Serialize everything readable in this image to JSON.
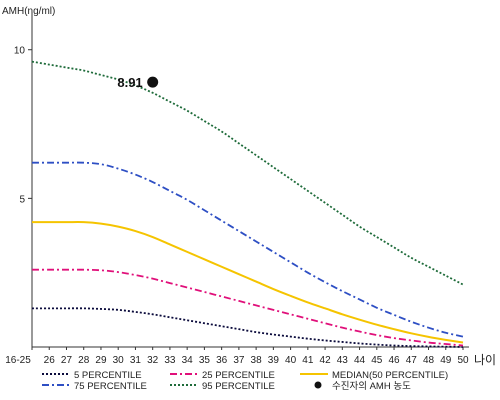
{
  "chart_data": {
    "type": "line",
    "ylabel": "AMH(ng/ml)",
    "xlabel": "나이",
    "ylim": [
      0,
      11
    ],
    "yticks": [
      5,
      10
    ],
    "ytick_labels": [
      "5",
      "10"
    ],
    "x": [
      0,
      1,
      2,
      3,
      4,
      5,
      6,
      7,
      8,
      9,
      10,
      11,
      12,
      13,
      14,
      15,
      16,
      17,
      18,
      19,
      20,
      21,
      22,
      23,
      24,
      25
    ],
    "xtick_labels": [
      "16-25",
      "26",
      "27",
      "28",
      "29",
      "30",
      "31",
      "32",
      "33",
      "34",
      "35",
      "36",
      "37",
      "38",
      "39",
      "40",
      "41",
      "42",
      "43",
      "44",
      "45",
      "46",
      "47",
      "48",
      "49",
      "50"
    ],
    "series": [
      {
        "name": "5 PERCENTILE",
        "color": "#0b0b3c",
        "dash": "2,2",
        "values": [
          1.3,
          1.3,
          1.3,
          1.3,
          1.28,
          1.25,
          1.18,
          1.1,
          1.0,
          0.9,
          0.8,
          0.7,
          0.6,
          0.5,
          0.42,
          0.35,
          0.28,
          0.22,
          0.17,
          0.12,
          0.08,
          0.05,
          0.03,
          0.02,
          0.01,
          0.0
        ]
      },
      {
        "name": "75 PERCENTILE",
        "color": "#2e4fc4",
        "dash": "7,3,2,3",
        "values": [
          6.2,
          6.2,
          6.2,
          6.2,
          6.15,
          6.0,
          5.8,
          5.55,
          5.25,
          4.95,
          4.6,
          4.25,
          3.9,
          3.55,
          3.2,
          2.85,
          2.5,
          2.18,
          1.88,
          1.6,
          1.32,
          1.08,
          0.85,
          0.65,
          0.48,
          0.35
        ]
      },
      {
        "name": "25 PERCENTILE",
        "color": "#e0107a",
        "dash": "7,3,2,3",
        "values": [
          2.6,
          2.6,
          2.6,
          2.6,
          2.58,
          2.52,
          2.42,
          2.3,
          2.15,
          2.0,
          1.85,
          1.7,
          1.55,
          1.4,
          1.25,
          1.1,
          0.95,
          0.8,
          0.65,
          0.52,
          0.4,
          0.3,
          0.22,
          0.15,
          0.1,
          0.05
        ]
      },
      {
        "name": "95 PERCENTILE",
        "color": "#1e6b3a",
        "dash": "2,2",
        "values": [
          9.6,
          9.5,
          9.4,
          9.3,
          9.15,
          9.0,
          8.8,
          8.55,
          8.25,
          7.95,
          7.6,
          7.25,
          6.85,
          6.45,
          6.05,
          5.65,
          5.25,
          4.85,
          4.45,
          4.05,
          3.7,
          3.35,
          3.0,
          2.7,
          2.4,
          2.1
        ]
      },
      {
        "name": "MEDIAN(50 PERCENTILE)",
        "color": "#f5c400",
        "dash": "",
        "values": [
          4.2,
          4.2,
          4.2,
          4.2,
          4.15,
          4.05,
          3.9,
          3.7,
          3.45,
          3.2,
          2.95,
          2.7,
          2.45,
          2.2,
          1.95,
          1.72,
          1.5,
          1.3,
          1.1,
          0.92,
          0.75,
          0.6,
          0.46,
          0.34,
          0.24,
          0.15
        ]
      }
    ],
    "point": {
      "name": "수진자의 AMH 농도",
      "x": 7,
      "y": 8.91,
      "label": "8.91",
      "color": "#111111"
    },
    "legend": [
      {
        "series": 0,
        "label": "5 PERCENTILE"
      },
      {
        "series": 2,
        "label": "25 PERCENTILE"
      },
      {
        "series": 4,
        "label": "MEDIAN(50 PERCENTILE)"
      },
      {
        "series": 1,
        "label": "75 PERCENTILE"
      },
      {
        "series": 3,
        "label": "95 PERCENTILE"
      },
      {
        "point": true,
        "label": "수진자의 AMH 농도"
      }
    ],
    "legend_placement": "bottom",
    "grid": false
  }
}
